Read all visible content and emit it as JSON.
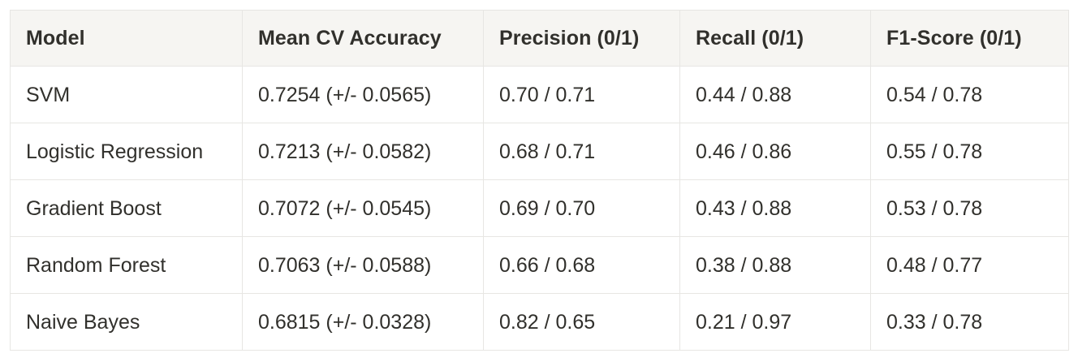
{
  "chart_data": {
    "type": "table",
    "title": "",
    "columns": [
      "Model",
      "Mean CV Accuracy",
      "Precision (0/1)",
      "Recall (0/1)",
      "F1-Score (0/1)"
    ],
    "rows": [
      [
        "SVM",
        "0.7254 (+/- 0.0565)",
        "0.70 / 0.71",
        "0.44 / 0.88",
        "0.54 / 0.78"
      ],
      [
        "Logistic Regression",
        "0.7213 (+/- 0.0582)",
        "0.68 / 0.71",
        "0.46 / 0.86",
        "0.55 / 0.78"
      ],
      [
        "Gradient Boost",
        "0.7072 (+/- 0.0545)",
        "0.69 / 0.70",
        "0.43 / 0.88",
        "0.53 / 0.78"
      ],
      [
        "Random Forest",
        "0.7063 (+/- 0.0588)",
        "0.66 / 0.68",
        "0.38 / 0.88",
        "0.48 / 0.77"
      ],
      [
        "Naive Bayes",
        "0.6815 (+/- 0.0328)",
        "0.82 / 0.65",
        "0.21 / 0.97",
        "0.33 / 0.78"
      ]
    ],
    "mean_cv_accuracy_values": [
      0.7254,
      0.7213,
      0.7072,
      0.7063,
      0.6815
    ],
    "mean_cv_accuracy_std": [
      0.0565,
      0.0582,
      0.0545,
      0.0588,
      0.0328
    ],
    "precision_class0": [
      0.7,
      0.68,
      0.69,
      0.66,
      0.82
    ],
    "precision_class1": [
      0.71,
      0.71,
      0.7,
      0.68,
      0.65
    ],
    "recall_class0": [
      0.44,
      0.46,
      0.43,
      0.38,
      0.21
    ],
    "recall_class1": [
      0.88,
      0.86,
      0.88,
      0.88,
      0.97
    ],
    "f1_class0": [
      0.54,
      0.55,
      0.53,
      0.48,
      0.33
    ],
    "f1_class1": [
      0.78,
      0.78,
      0.78,
      0.77,
      0.78
    ]
  },
  "colors": {
    "header_bg": "#f6f5f2",
    "body_bg": "#ffffff",
    "border": "#e7e6e3",
    "text": "#31302c"
  }
}
